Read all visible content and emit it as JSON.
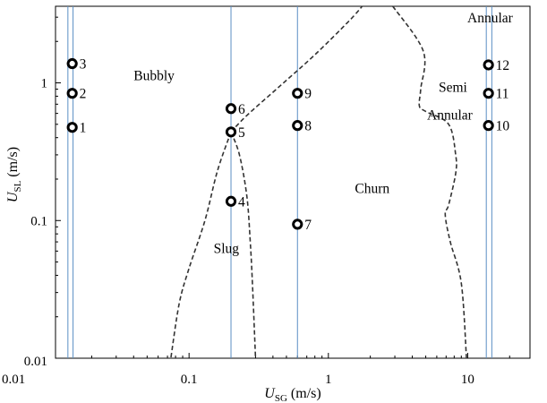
{
  "chart_data": {
    "type": "scatter",
    "title": "",
    "xlabel": {
      "main": "U",
      "sub": "SG",
      "unit": " (m/s)"
    },
    "ylabel": {
      "main": "U",
      "sub": "SL",
      "unit": " (m/s)"
    },
    "x_scale": "log",
    "y_scale": "log",
    "xlim": [
      0.011,
      28
    ],
    "ylim": [
      0.01,
      3.6
    ],
    "x_ticks": [
      {
        "value": 0.01,
        "label": "0.01"
      },
      {
        "value": 0.1,
        "label": "0.1"
      },
      {
        "value": 1,
        "label": "1"
      },
      {
        "value": 10,
        "label": "10"
      }
    ],
    "y_ticks": [
      {
        "value": 0.01,
        "label": "0.01"
      },
      {
        "value": 0.1,
        "label": "0.1"
      },
      {
        "value": 1,
        "label": "1"
      }
    ],
    "grid": false,
    "points": [
      {
        "id": "1",
        "x": 0.0145,
        "y": 0.475
      },
      {
        "id": "2",
        "x": 0.0145,
        "y": 0.84
      },
      {
        "id": "3",
        "x": 0.0145,
        "y": 1.38
      },
      {
        "id": "4",
        "x": 0.2,
        "y": 0.138
      },
      {
        "id": "5",
        "x": 0.2,
        "y": 0.44
      },
      {
        "id": "6",
        "x": 0.2,
        "y": 0.65
      },
      {
        "id": "7",
        "x": 0.6,
        "y": 0.094
      },
      {
        "id": "8",
        "x": 0.6,
        "y": 0.49
      },
      {
        "id": "9",
        "x": 0.6,
        "y": 0.84
      },
      {
        "id": "10",
        "x": 14.1,
        "y": 0.49
      },
      {
        "id": "11",
        "x": 14.1,
        "y": 0.84
      },
      {
        "id": "12",
        "x": 14.1,
        "y": 1.35
      }
    ],
    "vertical_lines": [
      0.0135,
      0.0147,
      0.2,
      0.6,
      13.6,
      14.9
    ],
    "regions": [
      {
        "text": "Bubbly",
        "x": 0.04,
        "y": 1.05
      },
      {
        "text": "Slug",
        "x": 0.15,
        "y": 0.058
      },
      {
        "text": "Churn",
        "x": 1.55,
        "y": 0.158
      },
      {
        "text": "Semi",
        "x": 6.5,
        "y": 0.86
      },
      {
        "text": "Annular",
        "x": 6.5,
        "y": 0.54
      },
      {
        "text": "Annular",
        "x": 15,
        "y": 2.75
      }
    ],
    "boundaries": [
      {
        "name": "bubbly-slug-to-churn",
        "points": [
          [
            0.2,
            0.44
          ],
          [
            0.26,
            0.58
          ],
          [
            0.45,
            0.95
          ],
          [
            0.8,
            1.6
          ],
          [
            1.4,
            2.8
          ],
          [
            1.75,
            3.6
          ]
        ]
      },
      {
        "name": "slug-churn",
        "points": [
          [
            0.2,
            0.44
          ],
          [
            0.23,
            0.3
          ],
          [
            0.26,
            0.15
          ],
          [
            0.275,
            0.07
          ],
          [
            0.285,
            0.035
          ],
          [
            0.3,
            0.01
          ]
        ]
      },
      {
        "name": "slug-left",
        "points": [
          [
            0.2,
            0.44
          ],
          [
            0.16,
            0.23
          ],
          [
            0.13,
            0.1
          ],
          [
            0.1,
            0.045
          ],
          [
            0.085,
            0.025
          ],
          [
            0.074,
            0.01
          ]
        ]
      },
      {
        "name": "churn-semi-annular",
        "points": [
          [
            2.9,
            3.6
          ],
          [
            4.8,
            1.7
          ],
          [
            4.6,
            0.9
          ],
          [
            4.5,
            0.68
          ],
          [
            5.0,
            0.62
          ],
          [
            7.3,
            0.5
          ],
          [
            8.2,
            0.3
          ],
          [
            8.2,
            0.22
          ],
          [
            7.3,
            0.13
          ],
          [
            6.9,
            0.11
          ],
          [
            7.5,
            0.07
          ],
          [
            9.0,
            0.035
          ],
          [
            9.8,
            0.01
          ]
        ]
      }
    ]
  }
}
